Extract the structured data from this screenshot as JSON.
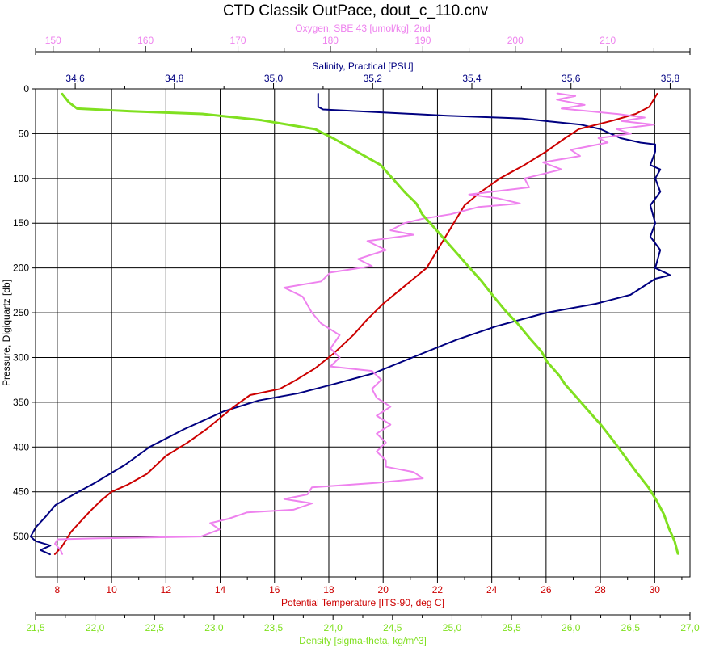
{
  "chart_data": {
    "type": "line",
    "title": "CTD Classik OutPace, dout_c_110.cnv",
    "grid": true,
    "y_axis": {
      "label": "Pressure, Digiquartz [db]",
      "range": [
        0,
        545
      ],
      "inverted": true,
      "ticks": [
        0,
        50,
        100,
        150,
        200,
        250,
        300,
        350,
        400,
        450,
        500
      ]
    },
    "x_axes": [
      {
        "id": "oxygen",
        "label": "Oxygen, SBE 43 [umol/kg], 2nd",
        "color": "#ee82ee",
        "position": "top-outer",
        "range": [
          148.1,
          218.9
        ],
        "ticks": [
          "150",
          "160",
          "170",
          "180",
          "190",
          "200",
          "210"
        ]
      },
      {
        "id": "salinity",
        "label": "Salinity, Practical [PSU]",
        "color": "#000080",
        "position": "top-inner",
        "range": [
          34.52,
          35.84
        ],
        "ticks": [
          "34,6",
          "34,8",
          "35,0",
          "35,2",
          "35,4",
          "35,6",
          "35,8"
        ]
      },
      {
        "id": "temperature",
        "label": "Potential Temperature [ITS-90, deg C]",
        "color": "#cc0000",
        "position": "bottom-inner",
        "range": [
          7.2,
          31.3
        ],
        "ticks": [
          "8",
          "10",
          "12",
          "14",
          "16",
          "18",
          "20",
          "22",
          "24",
          "26",
          "28",
          "30"
        ]
      },
      {
        "id": "density",
        "label": "Density [sigma-theta, kg/m^3]",
        "color": "#80e020",
        "position": "bottom-outer",
        "range": [
          21.5,
          27.0
        ],
        "ticks": [
          "21,5",
          "22,0",
          "22,5",
          "23,0",
          "23,5",
          "24,0",
          "24,5",
          "25,0",
          "25,5",
          "26,0",
          "26,5",
          "27,0"
        ]
      }
    ],
    "series": [
      {
        "name": "Salinity",
        "axis": "salinity",
        "color": "#000080",
        "points": [
          [
            35.09,
            5
          ],
          [
            35.09,
            20
          ],
          [
            35.1,
            23
          ],
          [
            35.35,
            30
          ],
          [
            35.5,
            33
          ],
          [
            35.55,
            36
          ],
          [
            35.62,
            40
          ],
          [
            35.66,
            45
          ],
          [
            35.7,
            55
          ],
          [
            35.74,
            60
          ],
          [
            35.77,
            62
          ],
          [
            35.77,
            70
          ],
          [
            35.76,
            85
          ],
          [
            35.78,
            90
          ],
          [
            35.77,
            100
          ],
          [
            35.78,
            115
          ],
          [
            35.76,
            130
          ],
          [
            35.77,
            150
          ],
          [
            35.76,
            165
          ],
          [
            35.78,
            180
          ],
          [
            35.77,
            200
          ],
          [
            35.8,
            208
          ],
          [
            35.77,
            212
          ],
          [
            35.72,
            230
          ],
          [
            35.65,
            240
          ],
          [
            35.55,
            250
          ],
          [
            35.45,
            265
          ],
          [
            35.37,
            280
          ],
          [
            35.28,
            300
          ],
          [
            35.2,
            318
          ],
          [
            35.12,
            330
          ],
          [
            35.05,
            340
          ],
          [
            34.97,
            348
          ],
          [
            34.9,
            360
          ],
          [
            34.82,
            380
          ],
          [
            34.75,
            400
          ],
          [
            34.7,
            420
          ],
          [
            34.64,
            440
          ],
          [
            34.6,
            452
          ],
          [
            34.56,
            465
          ],
          [
            34.54,
            478
          ],
          [
            34.52,
            490
          ],
          [
            34.51,
            500
          ],
          [
            34.52,
            505
          ],
          [
            34.55,
            510
          ],
          [
            34.53,
            515
          ],
          [
            34.55,
            520
          ]
        ]
      },
      {
        "name": "Potential Temperature",
        "axis": "temperature",
        "color": "#cc0000",
        "points": [
          [
            30.1,
            5
          ],
          [
            29.8,
            20
          ],
          [
            29.3,
            28
          ],
          [
            28.5,
            35
          ],
          [
            27.2,
            45
          ],
          [
            26.7,
            55
          ],
          [
            26.0,
            70
          ],
          [
            25.2,
            85
          ],
          [
            24.3,
            100
          ],
          [
            23.6,
            115
          ],
          [
            23.0,
            130
          ],
          [
            22.6,
            150
          ],
          [
            22.1,
            175
          ],
          [
            21.6,
            200
          ],
          [
            20.8,
            220
          ],
          [
            20.0,
            240
          ],
          [
            19.4,
            258
          ],
          [
            18.9,
            275
          ],
          [
            18.2,
            295
          ],
          [
            17.5,
            312
          ],
          [
            16.8,
            325
          ],
          [
            16.2,
            335
          ],
          [
            15.1,
            342
          ],
          [
            14.5,
            355
          ],
          [
            14.1,
            365
          ],
          [
            13.5,
            380
          ],
          [
            12.8,
            395
          ],
          [
            12.0,
            410
          ],
          [
            11.3,
            430
          ],
          [
            10.6,
            442
          ],
          [
            10.0,
            450
          ],
          [
            9.6,
            460
          ],
          [
            9.2,
            472
          ],
          [
            8.8,
            485
          ],
          [
            8.5,
            495
          ],
          [
            8.3,
            505
          ],
          [
            8.15,
            512
          ],
          [
            7.9,
            520
          ]
        ]
      },
      {
        "name": "Oxygen",
        "axis": "oxygen",
        "color": "#ee82ee",
        "points": [
          [
            204.5,
            5
          ],
          [
            206.5,
            8
          ],
          [
            204.5,
            12
          ],
          [
            207.5,
            18
          ],
          [
            205.0,
            22
          ],
          [
            211.0,
            28
          ],
          [
            214.0,
            32
          ],
          [
            211.5,
            36
          ],
          [
            215.0,
            40
          ],
          [
            211.0,
            45
          ],
          [
            212.5,
            50
          ],
          [
            209.0,
            55
          ],
          [
            210.0,
            60
          ],
          [
            206.0,
            68
          ],
          [
            207.0,
            75
          ],
          [
            203.0,
            82
          ],
          [
            205.0,
            90
          ],
          [
            201.0,
            100
          ],
          [
            201.5,
            110
          ],
          [
            195.0,
            118
          ],
          [
            198.0,
            122
          ],
          [
            200.5,
            128
          ],
          [
            196.0,
            132
          ],
          [
            193.0,
            140
          ],
          [
            190.0,
            145
          ],
          [
            188.0,
            150
          ],
          [
            186.5,
            158
          ],
          [
            189.0,
            163
          ],
          [
            184.0,
            170
          ],
          [
            186.0,
            180
          ],
          [
            183.0,
            190
          ],
          [
            184.5,
            198
          ],
          [
            180.0,
            205
          ],
          [
            179.0,
            215
          ],
          [
            175.0,
            222
          ],
          [
            177.0,
            232
          ],
          [
            178.0,
            250
          ],
          [
            179.0,
            262
          ],
          [
            181.0,
            275
          ],
          [
            180.0,
            290
          ],
          [
            181.0,
            300
          ],
          [
            180.0,
            310
          ],
          [
            184.5,
            315
          ],
          [
            185.5,
            325
          ],
          [
            184.5,
            335
          ],
          [
            185.0,
            345
          ],
          [
            186.5,
            355
          ],
          [
            185.0,
            365
          ],
          [
            186.5,
            375
          ],
          [
            185.0,
            385
          ],
          [
            186.0,
            395
          ],
          [
            185.0,
            405
          ],
          [
            186.0,
            415
          ],
          [
            186.0,
            422
          ],
          [
            189.0,
            428
          ],
          [
            190.0,
            435
          ],
          [
            185.0,
            440
          ],
          [
            178.0,
            445
          ],
          [
            177.5,
            453
          ],
          [
            175.0,
            458
          ],
          [
            178.0,
            463
          ],
          [
            176.0,
            470
          ],
          [
            171.0,
            473
          ],
          [
            169.0,
            480
          ],
          [
            167.0,
            485
          ],
          [
            168.0,
            492
          ],
          [
            166.0,
            500
          ],
          [
            155.0,
            502
          ],
          [
            150.5,
            503
          ],
          [
            150.2,
            508
          ],
          [
            150.8,
            515
          ],
          [
            151.0,
            520
          ]
        ]
      },
      {
        "name": "Density",
        "axis": "density",
        "color": "#80e020",
        "points": [
          [
            21.72,
            5
          ],
          [
            21.78,
            15
          ],
          [
            21.85,
            22
          ],
          [
            22.3,
            25
          ],
          [
            22.9,
            28
          ],
          [
            23.4,
            35
          ],
          [
            23.85,
            45
          ],
          [
            24.0,
            55
          ],
          [
            24.2,
            70
          ],
          [
            24.4,
            85
          ],
          [
            24.5,
            100
          ],
          [
            24.6,
            115
          ],
          [
            24.7,
            128
          ],
          [
            24.75,
            140
          ],
          [
            24.85,
            155
          ],
          [
            24.95,
            170
          ],
          [
            25.05,
            185
          ],
          [
            25.15,
            200
          ],
          [
            25.25,
            215
          ],
          [
            25.35,
            232
          ],
          [
            25.45,
            248
          ],
          [
            25.55,
            262
          ],
          [
            25.65,
            278
          ],
          [
            25.75,
            293
          ],
          [
            25.8,
            305
          ],
          [
            25.9,
            320
          ],
          [
            25.95,
            330
          ],
          [
            26.05,
            345
          ],
          [
            26.15,
            360
          ],
          [
            26.25,
            375
          ],
          [
            26.35,
            392
          ],
          [
            26.45,
            410
          ],
          [
            26.55,
            428
          ],
          [
            26.65,
            445
          ],
          [
            26.72,
            460
          ],
          [
            26.78,
            475
          ],
          [
            26.82,
            490
          ],
          [
            26.87,
            505
          ],
          [
            26.9,
            520
          ]
        ]
      }
    ]
  }
}
